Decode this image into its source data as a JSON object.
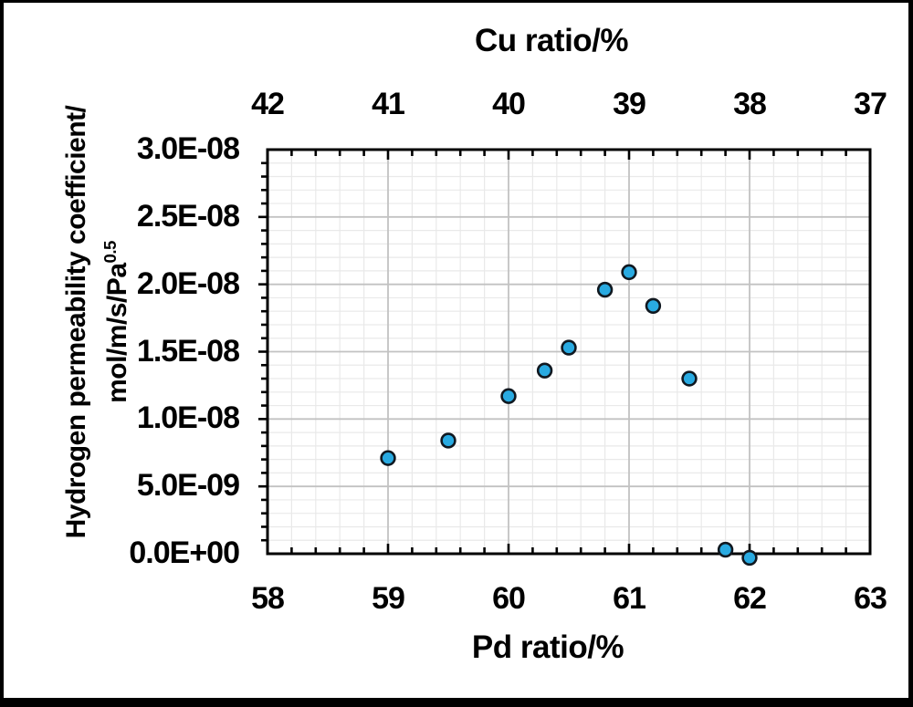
{
  "figure": {
    "background": "#ffffff",
    "border_color": "#000000"
  },
  "chart_data": {
    "type": "scatter",
    "title": "",
    "x_axis": {
      "label": "Pd ratio/%",
      "min": 58,
      "max": 63,
      "ticks": [
        58,
        59,
        60,
        61,
        62,
        63
      ],
      "minor_step": 0.2
    },
    "top_x_axis": {
      "label": "Cu ratio/%",
      "ticks": [
        42,
        41,
        40,
        39,
        38,
        37
      ]
    },
    "y_axis": {
      "label_line1": "Hydrogen permeability coefficient/",
      "label_line2": "mol/m/s/Pa",
      "label_superscript": "0.5",
      "min": 0,
      "max": 3e-08,
      "minor_step": 1e-09,
      "tick_labels": [
        {
          "text": "3.0E-08",
          "value": 3e-08
        },
        {
          "text": "2.5E-08",
          "value": 2.5e-08
        },
        {
          "text": "2.0E-08",
          "value": 2e-08
        },
        {
          "text": "1.5E-08",
          "value": 1.5e-08
        },
        {
          "text": "1.0E-08",
          "value": 1e-08
        },
        {
          "text": "5.0E-09",
          "value": 5e-09
        },
        {
          "text": "0.0E+00",
          "value": 0
        }
      ]
    },
    "points": [
      [
        59.0,
        7.1e-09
      ],
      [
        59.5,
        8.4e-09
      ],
      [
        60.0,
        1.17e-08
      ],
      [
        60.3,
        1.36e-08
      ],
      [
        60.5,
        1.53e-08
      ],
      [
        60.8,
        1.96e-08
      ],
      [
        61.0,
        2.09e-08
      ],
      [
        61.2,
        1.84e-08
      ],
      [
        61.5,
        1.3e-08
      ],
      [
        61.8,
        3e-10
      ],
      [
        62.0,
        -3e-10
      ]
    ],
    "marker": {
      "shape": "circle",
      "fill": "#29aae1",
      "stroke": "#101820",
      "radius": 7.4,
      "stroke_width": 2.6
    },
    "colors": {
      "grid_minor": "#e9e9e9",
      "grid_major": "#c2c2c2",
      "axis": "#000000"
    },
    "grid": {
      "visible": true
    },
    "legend": {
      "visible": false
    }
  }
}
